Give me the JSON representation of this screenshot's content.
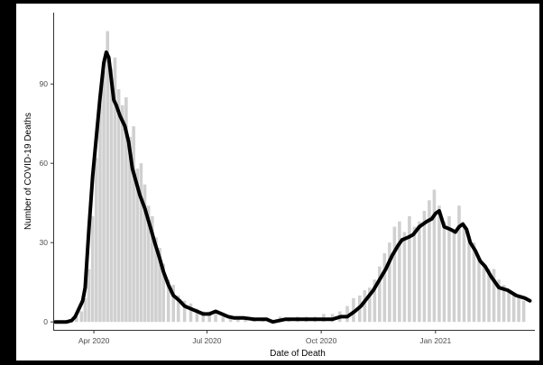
{
  "chart_data": {
    "type": "bar",
    "overlay": "line",
    "title": "",
    "xlabel": "Date of Death",
    "ylabel": "Number of COVID-19 Deaths",
    "x_type": "date",
    "xlim": [
      "2020-02-29",
      "2021-03-22"
    ],
    "ylim": [
      -3,
      117
    ],
    "y_ticks": [
      0,
      30,
      60,
      90
    ],
    "x_ticks": [
      {
        "date": "2020-04-01",
        "label": "Apr 2020"
      },
      {
        "date": "2020-07-01",
        "label": "Jul 2020"
      },
      {
        "date": "2020-10-01",
        "label": "Oct 2020"
      },
      {
        "date": "2021-01-01",
        "label": "Jan 2021"
      }
    ],
    "grid": false,
    "bar_color": "#d0d0d0",
    "line_color": "#000000",
    "series": [
      {
        "kind": "bar",
        "x": [
          "2020-03-06",
          "2020-03-10",
          "2020-03-14",
          "2020-03-18",
          "2020-03-22",
          "2020-03-25",
          "2020-03-28",
          "2020-03-31",
          "2020-04-03",
          "2020-04-06",
          "2020-04-09",
          "2020-04-12",
          "2020-04-15",
          "2020-04-18",
          "2020-04-21",
          "2020-04-24",
          "2020-04-27",
          "2020-04-30",
          "2020-05-03",
          "2020-05-06",
          "2020-05-09",
          "2020-05-12",
          "2020-05-15",
          "2020-05-18",
          "2020-05-21",
          "2020-05-24",
          "2020-05-27",
          "2020-05-31",
          "2020-06-04",
          "2020-06-08",
          "2020-06-13",
          "2020-06-18",
          "2020-06-23",
          "2020-06-28",
          "2020-07-03",
          "2020-07-08",
          "2020-07-14",
          "2020-07-20",
          "2020-07-26",
          "2020-08-01",
          "2020-08-08",
          "2020-08-15",
          "2020-08-22",
          "2020-08-29",
          "2020-09-05",
          "2020-09-12",
          "2020-09-19",
          "2020-09-26",
          "2020-10-03",
          "2020-10-10",
          "2020-10-16",
          "2020-10-22",
          "2020-10-27",
          "2020-11-01",
          "2020-11-05",
          "2020-11-09",
          "2020-11-13",
          "2020-11-17",
          "2020-11-21",
          "2020-11-25",
          "2020-11-29",
          "2020-12-03",
          "2020-12-07",
          "2020-12-11",
          "2020-12-15",
          "2020-12-19",
          "2020-12-23",
          "2020-12-27",
          "2020-12-31",
          "2021-01-04",
          "2021-01-08",
          "2021-01-12",
          "2021-01-16",
          "2021-01-20",
          "2021-01-24",
          "2021-01-28",
          "2021-02-01",
          "2021-02-05",
          "2021-02-09",
          "2021-02-13",
          "2021-02-17",
          "2021-02-21",
          "2021-02-25",
          "2021-03-01",
          "2021-03-05",
          "2021-03-09",
          "2021-03-13"
        ],
        "values": [
          0,
          0,
          1,
          2,
          4,
          9,
          20,
          40,
          62,
          82,
          95,
          110,
          96,
          100,
          88,
          82,
          85,
          70,
          74,
          58,
          60,
          52,
          44,
          40,
          32,
          28,
          22,
          16,
          14,
          10,
          8,
          7,
          5,
          4,
          4,
          3,
          2,
          2,
          2,
          1,
          1,
          1,
          1,
          2,
          1,
          2,
          2,
          2,
          3,
          3,
          4,
          6,
          9,
          10,
          12,
          13,
          16,
          21,
          26,
          30,
          36,
          38,
          34,
          40,
          36,
          38,
          42,
          46,
          50,
          44,
          38,
          40,
          34,
          44,
          36,
          32,
          30,
          24,
          22,
          20,
          20,
          16,
          14,
          12,
          10,
          10,
          8
        ]
      },
      {
        "kind": "line",
        "x": [
          "2020-03-01",
          "2020-03-10",
          "2020-03-14",
          "2020-03-17",
          "2020-03-20",
          "2020-03-23",
          "2020-03-25",
          "2020-03-28",
          "2020-03-31",
          "2020-04-03",
          "2020-04-06",
          "2020-04-09",
          "2020-04-11",
          "2020-04-13",
          "2020-04-15",
          "2020-04-17",
          "2020-04-19",
          "2020-04-22",
          "2020-04-26",
          "2020-04-29",
          "2020-05-02",
          "2020-05-05",
          "2020-05-08",
          "2020-05-12",
          "2020-05-17",
          "2020-05-20",
          "2020-05-24",
          "2020-05-27",
          "2020-05-31",
          "2020-06-04",
          "2020-06-09",
          "2020-06-13",
          "2020-06-18",
          "2020-06-23",
          "2020-06-28",
          "2020-07-03",
          "2020-07-08",
          "2020-07-13",
          "2020-07-18",
          "2020-07-23",
          "2020-07-31",
          "2020-08-08",
          "2020-08-18",
          "2020-08-23",
          "2020-09-02",
          "2020-09-12",
          "2020-09-22",
          "2020-10-02",
          "2020-10-10",
          "2020-10-17",
          "2020-10-22",
          "2020-10-28",
          "2020-11-02",
          "2020-11-07",
          "2020-11-12",
          "2020-11-17",
          "2020-11-22",
          "2020-11-27",
          "2020-12-02",
          "2020-12-05",
          "2020-12-10",
          "2020-12-14",
          "2020-12-19",
          "2020-12-22",
          "2020-12-25",
          "2020-12-29",
          "2021-01-01",
          "2021-01-04",
          "2021-01-08",
          "2021-01-13",
          "2021-01-17",
          "2021-01-20",
          "2021-01-23",
          "2021-01-26",
          "2021-01-29",
          "2021-02-02",
          "2021-02-06",
          "2021-02-10",
          "2021-02-15",
          "2021-02-21",
          "2021-02-28",
          "2021-03-07",
          "2021-03-14",
          "2021-03-18"
        ],
        "values": [
          0,
          0,
          0.5,
          2,
          5,
          8,
          13,
          35,
          55,
          70,
          85,
          98,
          102,
          100,
          92,
          84,
          82,
          78,
          74,
          68,
          58,
          53,
          48,
          43,
          35,
          30,
          24,
          19,
          14,
          10,
          8,
          6,
          5,
          4,
          3,
          3,
          4,
          3,
          2,
          1.5,
          1.5,
          1,
          1,
          0,
          1,
          1,
          1,
          1,
          1,
          2,
          2,
          4,
          6,
          9,
          12,
          16,
          20,
          25,
          29,
          31,
          32,
          33,
          36,
          37,
          38,
          39,
          41,
          42,
          36,
          35,
          34,
          36,
          37,
          35,
          30,
          27,
          23,
          21,
          17,
          13,
          12,
          10,
          9,
          8
        ]
      }
    ]
  }
}
